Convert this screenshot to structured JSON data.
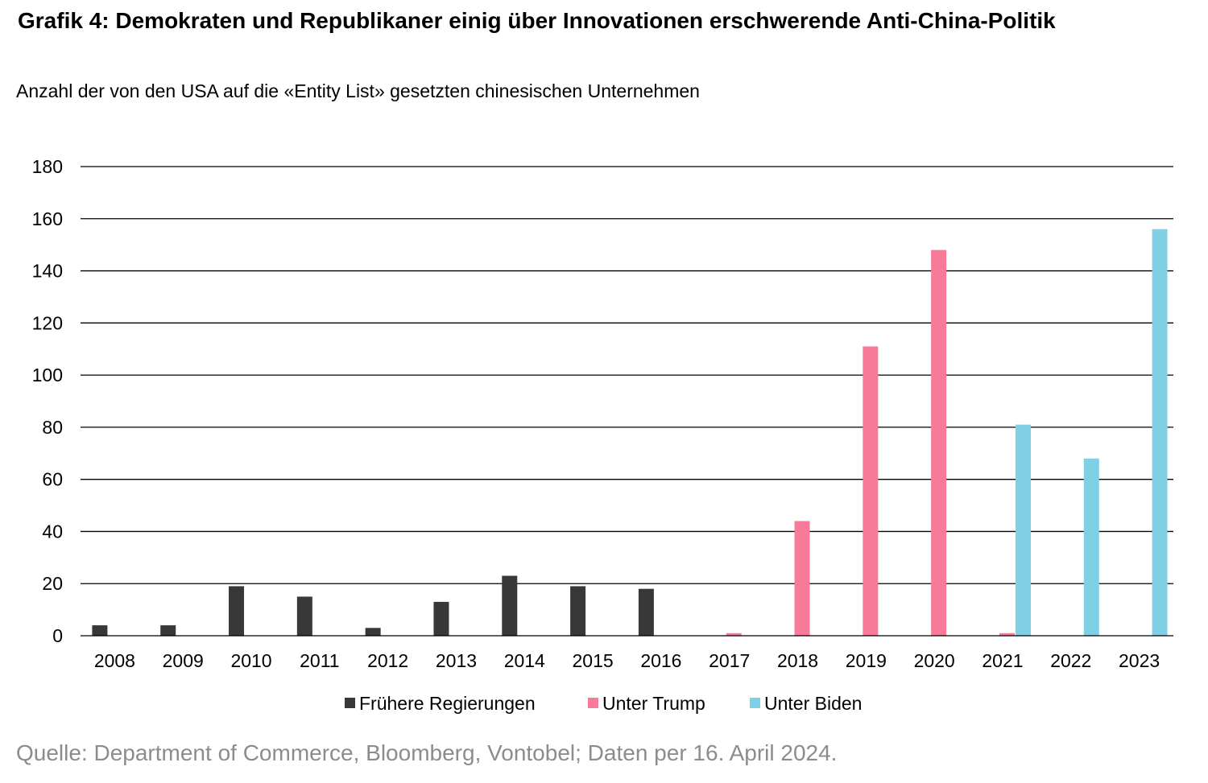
{
  "title": "Grafik 4: Demokraten und Republikaner einig über Innovationen erschwerende Anti-China-Politik",
  "subtitle": "Anzahl der von den USA auf die «Entity List» gesetzten chinesischen Unternehmen",
  "source": "Quelle: Department of Commerce, Bloomberg, Vontobel; Daten per 16. April 2024.",
  "chart_data": {
    "type": "bar",
    "title": "",
    "xlabel": "",
    "ylabel": "",
    "ylim": [
      0,
      180
    ],
    "yticks": [
      0,
      20,
      40,
      60,
      80,
      100,
      120,
      140,
      160,
      180
    ],
    "grid": true,
    "legend_position": "bottom",
    "categories": [
      "2008",
      "2009",
      "2010",
      "2011",
      "2012",
      "2013",
      "2014",
      "2015",
      "2016",
      "2017",
      "2018",
      "2019",
      "2020",
      "2021",
      "2022",
      "2023"
    ],
    "series": [
      {
        "name": "Frühere Regierungen",
        "color": "#383838",
        "values": [
          4,
          4,
          19,
          15,
          3,
          13,
          23,
          19,
          18,
          0,
          0,
          0,
          0,
          0,
          0,
          0
        ]
      },
      {
        "name": "Unter Trump",
        "color": "#f77b98",
        "values": [
          0,
          0,
          0,
          0,
          0,
          0,
          0,
          0,
          0,
          1,
          44,
          111,
          148,
          1,
          0,
          0
        ]
      },
      {
        "name": "Unter Biden",
        "color": "#7fd0e4",
        "values": [
          0,
          0,
          0,
          0,
          0,
          0,
          0,
          0,
          0,
          0,
          0,
          0,
          0,
          81,
          68,
          156
        ]
      }
    ]
  }
}
